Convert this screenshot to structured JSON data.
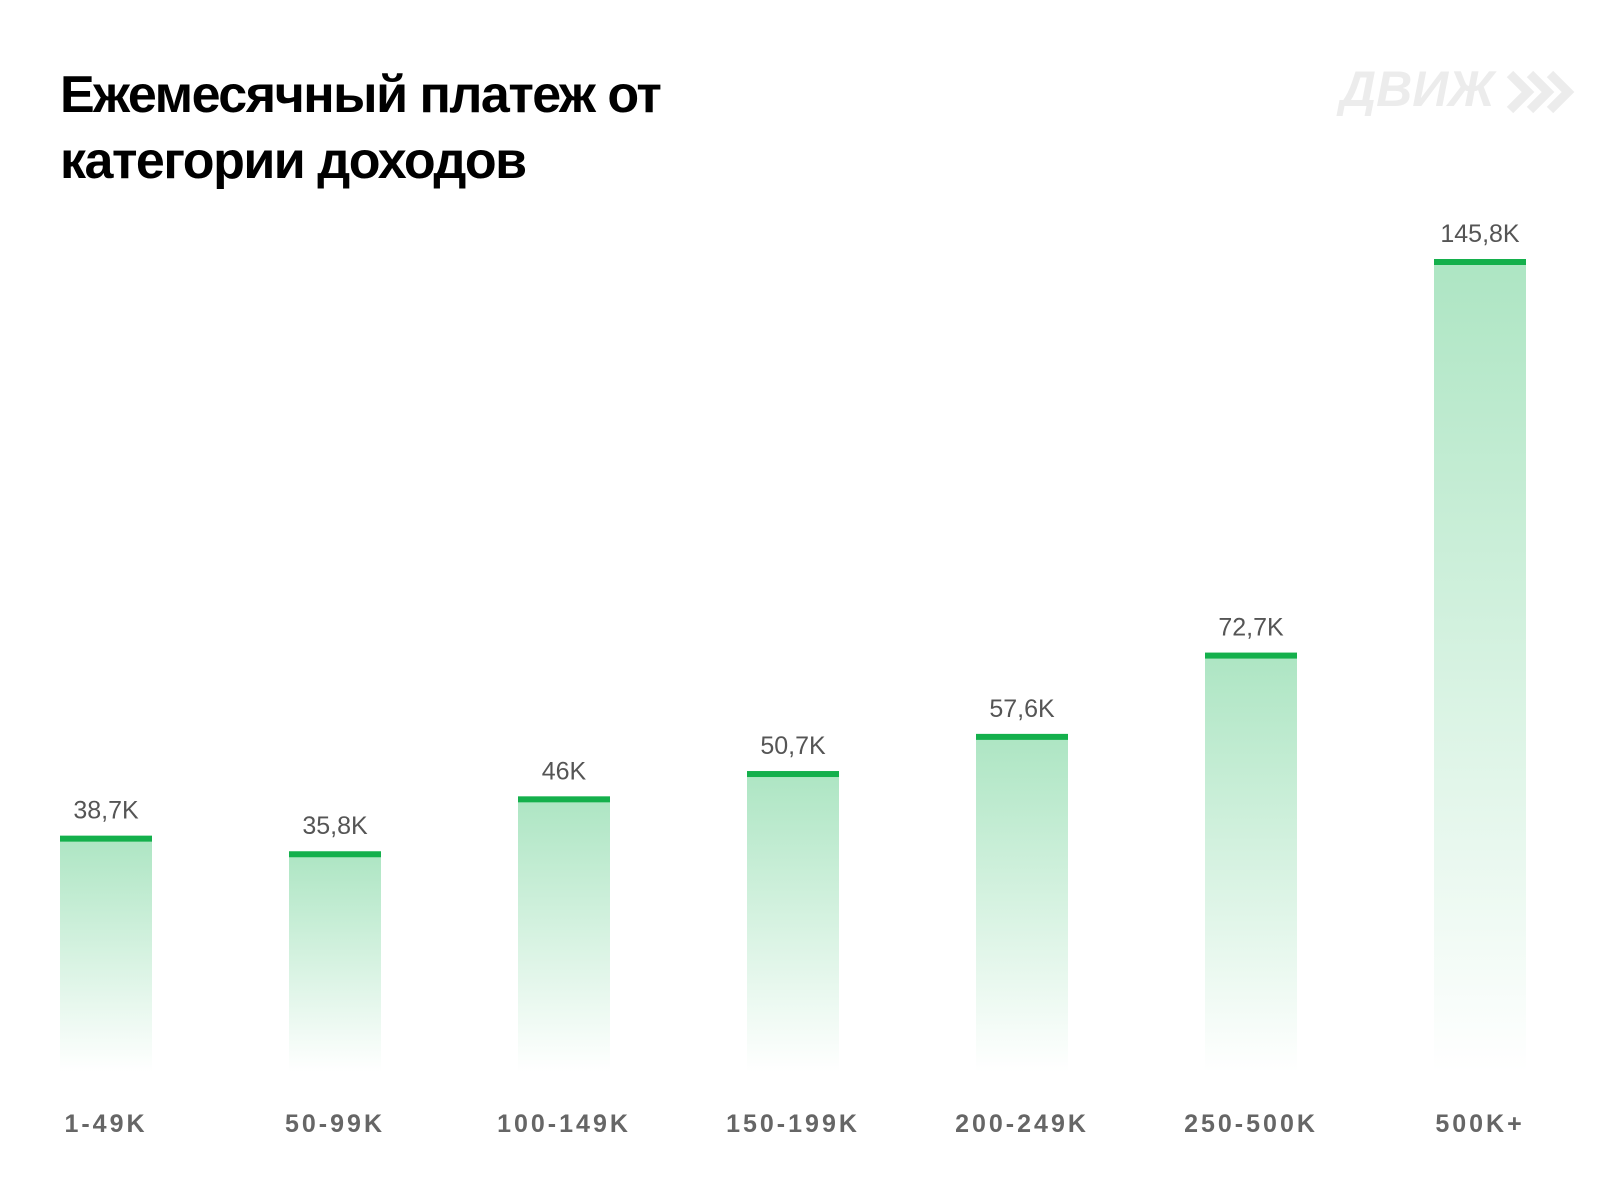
{
  "chart_data": {
    "type": "bar",
    "title": "Ежемесячный платеж от категории доходов",
    "logo": "ДВИЖ",
    "categories": [
      "1-49K",
      "50-99K",
      "100-149K",
      "150-199K",
      "200-249K",
      "250-500K",
      "500K+"
    ],
    "values": [
      38.7,
      35.8,
      46,
      50.7,
      57.6,
      72.7,
      145.8
    ],
    "value_labels": [
      "38,7K",
      "35,8K",
      "46K",
      "50,7K",
      "57,6K",
      "72,7K",
      "145,8K"
    ],
    "color": "#14b04c",
    "fill_color": "#a9e4c0"
  }
}
